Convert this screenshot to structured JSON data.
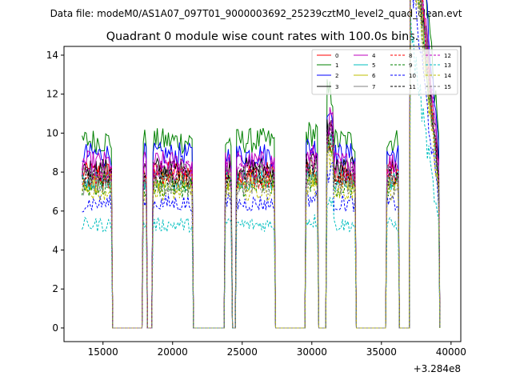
{
  "figure": {
    "suptitle": "Data file: modeM0/AS1A07_097T01_9000003692_25239cztM0_level2_quad_clean.evt"
  },
  "chart_data": {
    "type": "line",
    "title": "Quadrant 0 module wise count rates with 100.0s bins.",
    "xlabel": "",
    "ylabel": "",
    "x_offset_label": "+3.284e8",
    "x_offset": 328400000,
    "xlim": [
      12200,
      40700
    ],
    "ylim": [
      -0.7,
      14.45
    ],
    "xticks": [
      15000,
      20000,
      25000,
      30000,
      35000,
      40000
    ],
    "yticks": [
      0,
      2,
      4,
      6,
      8,
      10,
      12,
      14
    ],
    "bin_seconds": 100,
    "legend_position": "top-right",
    "legend_columns": 4,
    "profile_description": "Each module's rate is high (plateau) during good-time intervals and 0 in the gaps between them.",
    "segments": [
      {
        "start": 13500,
        "end": 15700,
        "state": "on"
      },
      {
        "start": 15700,
        "end": 17900,
        "state": "off"
      },
      {
        "start": 17900,
        "end": 18200,
        "state": "on"
      },
      {
        "start": 18200,
        "end": 18600,
        "state": "off"
      },
      {
        "start": 18600,
        "end": 21500,
        "state": "on"
      },
      {
        "start": 21500,
        "end": 23800,
        "state": "off"
      },
      {
        "start": 23800,
        "end": 24300,
        "state": "on"
      },
      {
        "start": 24300,
        "end": 24600,
        "state": "off"
      },
      {
        "start": 24600,
        "end": 27400,
        "state": "on"
      },
      {
        "start": 27400,
        "end": 29600,
        "state": "off"
      },
      {
        "start": 29600,
        "end": 30500,
        "state": "on"
      },
      {
        "start": 30500,
        "end": 31100,
        "state": "off"
      },
      {
        "start": 31100,
        "end": 33200,
        "state": "on"
      },
      {
        "start": 33200,
        "end": 35400,
        "state": "off"
      },
      {
        "start": 35400,
        "end": 36300,
        "state": "on"
      },
      {
        "start": 36300,
        "end": 37100,
        "state": "off"
      },
      {
        "start": 37100,
        "end": 39200,
        "state": "on"
      }
    ],
    "series": [
      {
        "name": "0",
        "color": "#ff0000",
        "dash": "solid",
        "level": 8.0
      },
      {
        "name": "1",
        "color": "#008000",
        "dash": "solid",
        "level": 9.6
      },
      {
        "name": "2",
        "color": "#0000ff",
        "dash": "solid",
        "level": 8.9
      },
      {
        "name": "3",
        "color": "#000000",
        "dash": "solid",
        "level": 8.2
      },
      {
        "name": "4",
        "color": "#bf00bf",
        "dash": "solid",
        "level": 8.5
      },
      {
        "name": "5",
        "color": "#00bfbf",
        "dash": "solid",
        "level": 7.6
      },
      {
        "name": "6",
        "color": "#bfbf00",
        "dash": "solid",
        "level": 7.5
      },
      {
        "name": "7",
        "color": "#808080",
        "dash": "solid",
        "level": 7.9
      },
      {
        "name": "8",
        "color": "#ff0000",
        "dash": "dashed",
        "level": 7.7
      },
      {
        "name": "9",
        "color": "#008000",
        "dash": "dashed",
        "level": 7.2
      },
      {
        "name": "10",
        "color": "#0000ff",
        "dash": "dashed",
        "level": 6.4
      },
      {
        "name": "11",
        "color": "#000000",
        "dash": "dashed",
        "level": 7.8
      },
      {
        "name": "12",
        "color": "#bf00bf",
        "dash": "dashed",
        "level": 8.1
      },
      {
        "name": "13",
        "color": "#00bfbf",
        "dash": "dashed",
        "level": 5.3
      },
      {
        "name": "14",
        "color": "#bfbf00",
        "dash": "dashed",
        "level": 7.0
      },
      {
        "name": "15",
        "color": "#808080",
        "dash": "dashed",
        "level": 7.3
      }
    ]
  }
}
